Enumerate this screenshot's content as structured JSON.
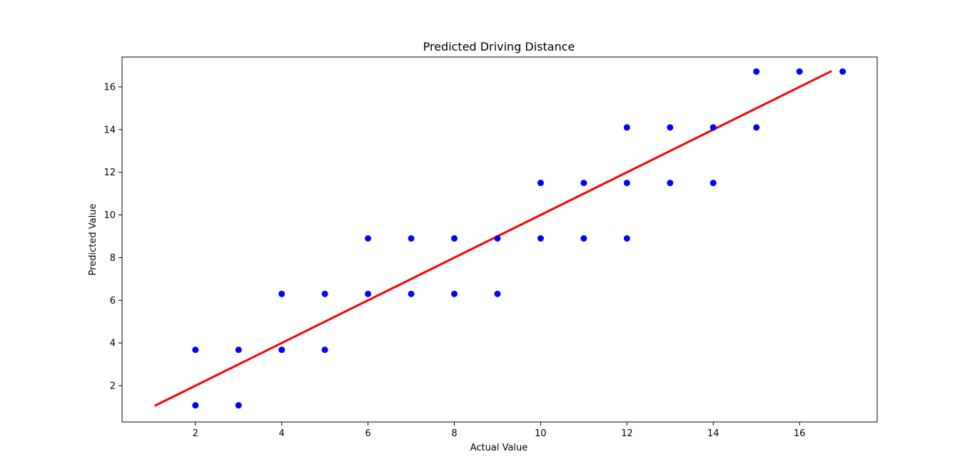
{
  "chart_data": {
    "type": "scatter",
    "title": "Predicted Driving Distance",
    "xlabel": "Actual Value",
    "ylabel": "Predicted Value",
    "xlim": [
      0.3,
      17.8
    ],
    "ylim": [
      0.3,
      17.4
    ],
    "xticks": [
      2,
      4,
      6,
      8,
      10,
      12,
      14,
      16
    ],
    "yticks": [
      2,
      4,
      6,
      8,
      10,
      12,
      14,
      16
    ],
    "grid": false,
    "series": [
      {
        "kind": "scatter",
        "color": "#0000ff",
        "points": [
          [
            2,
            3.68
          ],
          [
            2,
            1.08
          ],
          [
            3,
            3.68
          ],
          [
            3,
            1.08
          ],
          [
            4,
            6.3
          ],
          [
            4,
            3.68
          ],
          [
            5,
            6.3
          ],
          [
            5,
            3.68
          ],
          [
            6,
            8.9
          ],
          [
            6,
            6.3
          ],
          [
            7,
            8.9
          ],
          [
            7,
            6.3
          ],
          [
            8,
            8.9
          ],
          [
            8,
            6.3
          ],
          [
            9,
            8.9
          ],
          [
            9,
            6.3
          ],
          [
            10,
            11.5
          ],
          [
            10,
            8.9
          ],
          [
            11,
            11.5
          ],
          [
            11,
            8.9
          ],
          [
            12,
            14.1
          ],
          [
            12,
            11.5
          ],
          [
            12,
            8.9
          ],
          [
            13,
            14.1
          ],
          [
            13,
            11.5
          ],
          [
            14,
            14.1
          ],
          [
            14,
            11.5
          ],
          [
            15,
            16.72
          ],
          [
            15,
            14.1
          ],
          [
            16,
            16.72
          ],
          [
            17,
            16.72
          ]
        ]
      },
      {
        "kind": "line",
        "color": "#ff0000",
        "points": [
          [
            1.08,
            1.08
          ],
          [
            16.72,
            16.72
          ]
        ]
      }
    ]
  }
}
